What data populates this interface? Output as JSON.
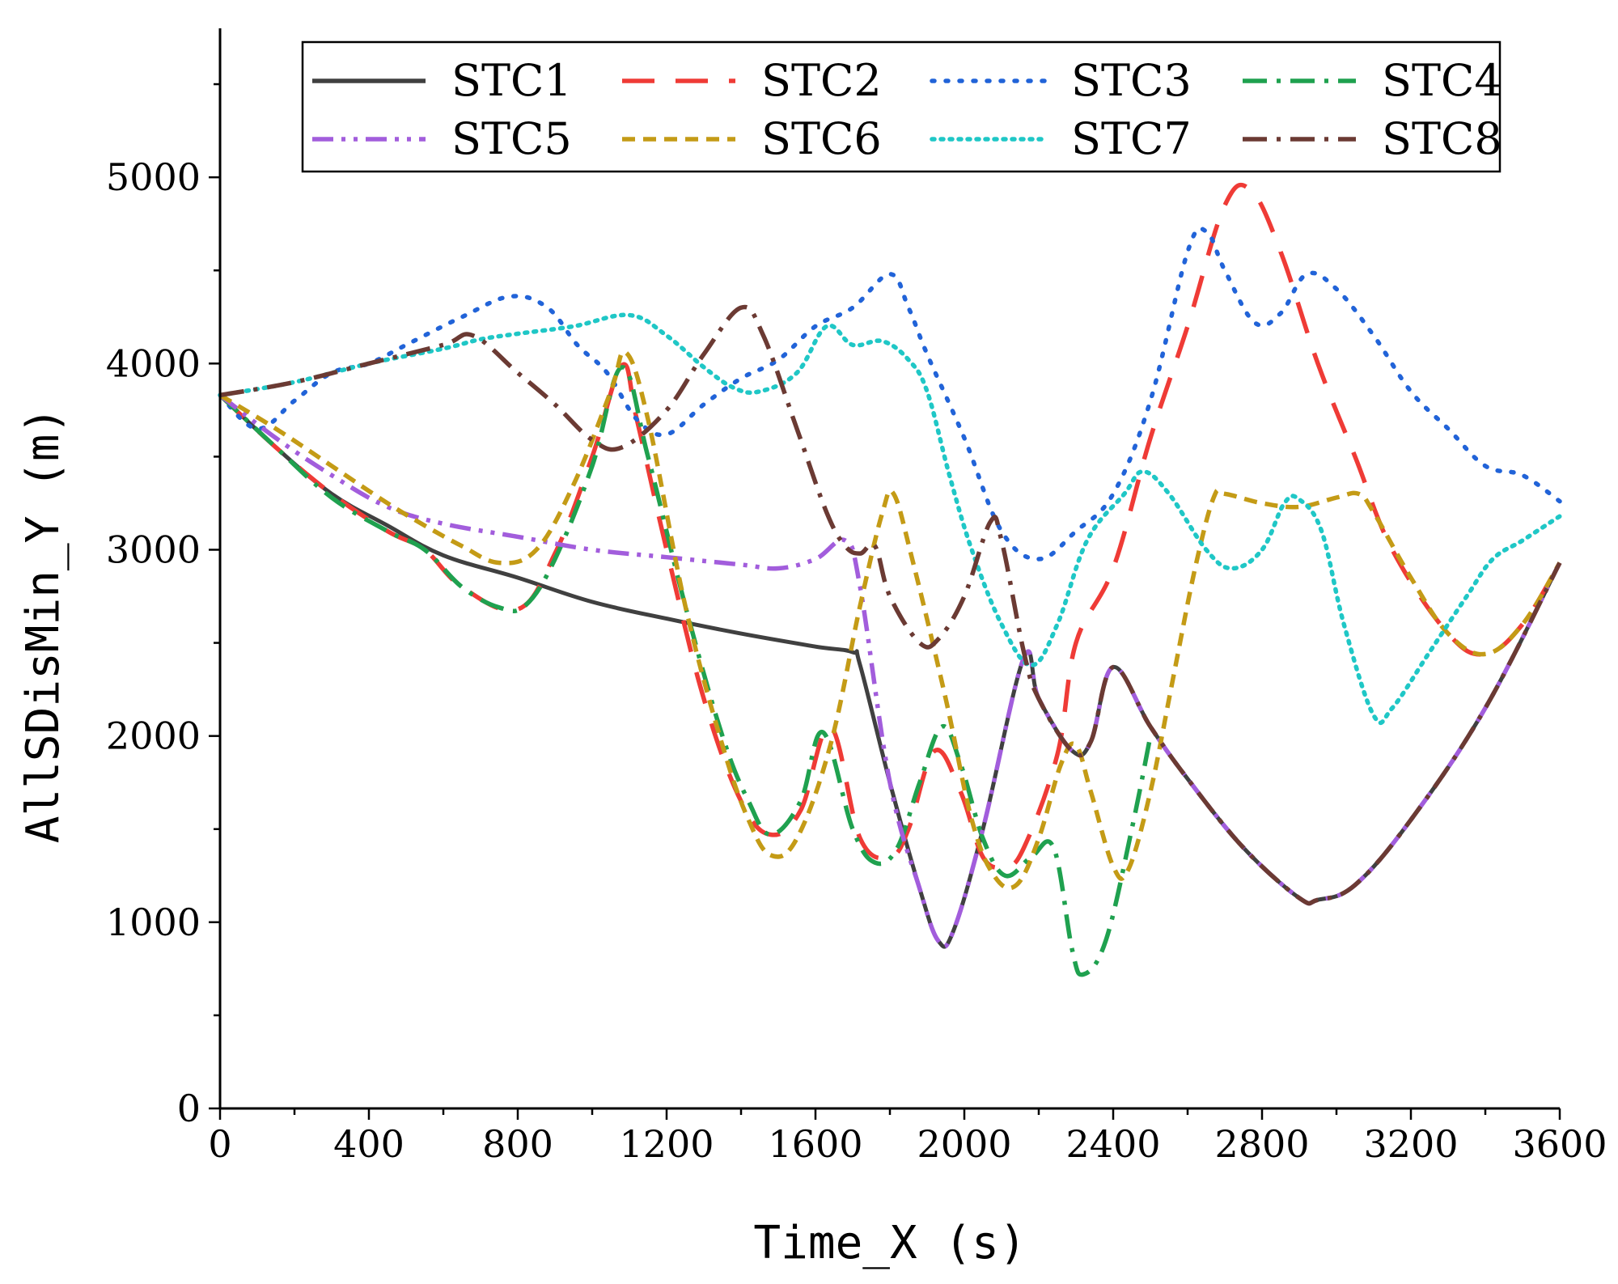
{
  "chart_data": {
    "type": "line",
    "title": "",
    "xlabel": "Time_X (s)",
    "ylabel": "AllSDisMin_Y (m)",
    "xlim": [
      0,
      3600
    ],
    "ylim": [
      0,
      5800
    ],
    "x_ticks": [
      0,
      400,
      800,
      1200,
      1600,
      2000,
      2400,
      2800,
      3200,
      3600
    ],
    "y_ticks": [
      0,
      1000,
      2000,
      3000,
      4000,
      5000
    ],
    "grid": false,
    "legend_position": "top",
    "series": [
      {
        "name": "STC1",
        "color": "#404040",
        "dash": "solid",
        "points": [
          [
            0,
            3830
          ],
          [
            150,
            3550
          ],
          [
            300,
            3300
          ],
          [
            450,
            3130
          ],
          [
            600,
            2970
          ],
          [
            800,
            2850
          ],
          [
            1000,
            2720
          ],
          [
            1200,
            2630
          ],
          [
            1400,
            2550
          ],
          [
            1600,
            2480
          ],
          [
            1700,
            2450
          ],
          [
            1720,
            2380
          ],
          [
            1800,
            1750
          ],
          [
            1880,
            1180
          ],
          [
            1930,
            900
          ],
          [
            1970,
            950
          ],
          [
            2050,
            1500
          ],
          [
            2160,
            2420
          ],
          [
            2200,
            2200
          ],
          [
            2290,
            1920
          ],
          [
            2340,
            1970
          ],
          [
            2400,
            2370
          ],
          [
            2500,
            2050
          ],
          [
            2600,
            1770
          ],
          [
            2750,
            1400
          ],
          [
            2900,
            1130
          ],
          [
            2950,
            1120
          ],
          [
            3050,
            1200
          ],
          [
            3200,
            1550
          ],
          [
            3400,
            2150
          ],
          [
            3600,
            2930
          ]
        ]
      },
      {
        "name": "STC2",
        "color": "#ef3b36",
        "dash": "long-dash",
        "points": [
          [
            0,
            3830
          ],
          [
            150,
            3550
          ],
          [
            300,
            3300
          ],
          [
            450,
            3100
          ],
          [
            550,
            3000
          ],
          [
            650,
            2800
          ],
          [
            800,
            2680
          ],
          [
            900,
            2980
          ],
          [
            1000,
            3500
          ],
          [
            1080,
            3990
          ],
          [
            1120,
            3700
          ],
          [
            1200,
            3000
          ],
          [
            1300,
            2200
          ],
          [
            1400,
            1650
          ],
          [
            1480,
            1470
          ],
          [
            1560,
            1600
          ],
          [
            1640,
            2050
          ],
          [
            1720,
            1450
          ],
          [
            1800,
            1350
          ],
          [
            1850,
            1500
          ],
          [
            1920,
            1920
          ],
          [
            1990,
            1700
          ],
          [
            2050,
            1350
          ],
          [
            2110,
            1300
          ],
          [
            2160,
            1400
          ],
          [
            2250,
            1900
          ],
          [
            2300,
            2500
          ],
          [
            2400,
            2900
          ],
          [
            2500,
            3600
          ],
          [
            2600,
            4200
          ],
          [
            2700,
            4850
          ],
          [
            2770,
            4930
          ],
          [
            2850,
            4600
          ],
          [
            2950,
            4000
          ],
          [
            3050,
            3500
          ],
          [
            3150,
            3000
          ],
          [
            3300,
            2550
          ],
          [
            3400,
            2440
          ],
          [
            3500,
            2600
          ],
          [
            3600,
            2930
          ]
        ]
      },
      {
        "name": "STC3",
        "color": "#2163d8",
        "dash": "dotted",
        "points": [
          [
            0,
            3830
          ],
          [
            100,
            3650
          ],
          [
            200,
            3800
          ],
          [
            300,
            3950
          ],
          [
            400,
            4000
          ],
          [
            500,
            4100
          ],
          [
            650,
            4250
          ],
          [
            780,
            4360
          ],
          [
            880,
            4300
          ],
          [
            960,
            4100
          ],
          [
            1040,
            3950
          ],
          [
            1120,
            3700
          ],
          [
            1200,
            3620
          ],
          [
            1300,
            3780
          ],
          [
            1400,
            3920
          ],
          [
            1500,
            4020
          ],
          [
            1600,
            4200
          ],
          [
            1700,
            4300
          ],
          [
            1800,
            4480
          ],
          [
            1850,
            4300
          ],
          [
            1900,
            4050
          ],
          [
            2000,
            3600
          ],
          [
            2100,
            3100
          ],
          [
            2200,
            2950
          ],
          [
            2300,
            3100
          ],
          [
            2400,
            3300
          ],
          [
            2500,
            3800
          ],
          [
            2600,
            4600
          ],
          [
            2650,
            4710
          ],
          [
            2700,
            4500
          ],
          [
            2780,
            4220
          ],
          [
            2850,
            4270
          ],
          [
            2920,
            4480
          ],
          [
            3000,
            4400
          ],
          [
            3100,
            4150
          ],
          [
            3200,
            3850
          ],
          [
            3300,
            3650
          ],
          [
            3400,
            3450
          ],
          [
            3500,
            3400
          ],
          [
            3600,
            3260
          ]
        ]
      },
      {
        "name": "STC4",
        "color": "#1fa14f",
        "dash": "dash-dot",
        "points": [
          [
            0,
            3830
          ],
          [
            150,
            3550
          ],
          [
            300,
            3280
          ],
          [
            450,
            3100
          ],
          [
            550,
            3000
          ],
          [
            650,
            2800
          ],
          [
            750,
            2690
          ],
          [
            820,
            2700
          ],
          [
            900,
            2950
          ],
          [
            1000,
            3450
          ],
          [
            1080,
            3980
          ],
          [
            1150,
            3500
          ],
          [
            1250,
            2700
          ],
          [
            1350,
            2000
          ],
          [
            1420,
            1650
          ],
          [
            1480,
            1470
          ],
          [
            1560,
            1650
          ],
          [
            1620,
            2020
          ],
          [
            1700,
            1500
          ],
          [
            1760,
            1320
          ],
          [
            1820,
            1400
          ],
          [
            1880,
            1750
          ],
          [
            1940,
            2050
          ],
          [
            1990,
            1850
          ],
          [
            2050,
            1450
          ],
          [
            2110,
            1250
          ],
          [
            2180,
            1350
          ],
          [
            2240,
            1400
          ],
          [
            2290,
            850
          ],
          [
            2320,
            720
          ],
          [
            2380,
            900
          ],
          [
            2450,
            1500
          ],
          [
            2500,
            2000
          ]
        ]
      },
      {
        "name": "STC5",
        "color": "#a25ddc",
        "dash": "dash-dot-dot",
        "points": [
          [
            0,
            3830
          ],
          [
            150,
            3600
          ],
          [
            300,
            3400
          ],
          [
            450,
            3230
          ],
          [
            600,
            3140
          ],
          [
            800,
            3070
          ],
          [
            1000,
            3000
          ],
          [
            1200,
            2960
          ],
          [
            1400,
            2920
          ],
          [
            1500,
            2900
          ],
          [
            1600,
            2950
          ],
          [
            1680,
            3050
          ],
          [
            1720,
            2800
          ],
          [
            1800,
            1750
          ],
          [
            1880,
            1180
          ],
          [
            1930,
            900
          ],
          [
            1970,
            950
          ],
          [
            2050,
            1500
          ],
          [
            2160,
            2420
          ],
          [
            2200,
            2200
          ],
          [
            2290,
            1920
          ],
          [
            2340,
            1970
          ],
          [
            2400,
            2370
          ],
          [
            2500,
            2050
          ],
          [
            2600,
            1770
          ],
          [
            2750,
            1400
          ],
          [
            2900,
            1130
          ],
          [
            2950,
            1120
          ],
          [
            3050,
            1200
          ],
          [
            3200,
            1550
          ],
          [
            3400,
            2150
          ],
          [
            3600,
            2930
          ]
        ]
      },
      {
        "name": "STC6",
        "color": "#c49b16",
        "dash": "short-dash",
        "points": [
          [
            0,
            3830
          ],
          [
            150,
            3650
          ],
          [
            300,
            3450
          ],
          [
            450,
            3250
          ],
          [
            550,
            3130
          ],
          [
            650,
            3020
          ],
          [
            750,
            2930
          ],
          [
            850,
            3000
          ],
          [
            950,
            3350
          ],
          [
            1050,
            3850
          ],
          [
            1090,
            4060
          ],
          [
            1150,
            3700
          ],
          [
            1250,
            2700
          ],
          [
            1350,
            1950
          ],
          [
            1420,
            1550
          ],
          [
            1480,
            1360
          ],
          [
            1550,
            1450
          ],
          [
            1640,
            1950
          ],
          [
            1720,
            2700
          ],
          [
            1780,
            3200
          ],
          [
            1810,
            3300
          ],
          [
            1860,
            2950
          ],
          [
            1950,
            2200
          ],
          [
            2020,
            1550
          ],
          [
            2080,
            1250
          ],
          [
            2140,
            1200
          ],
          [
            2200,
            1450
          ],
          [
            2260,
            1850
          ],
          [
            2300,
            1950
          ],
          [
            2340,
            1700
          ],
          [
            2400,
            1300
          ],
          [
            2440,
            1280
          ],
          [
            2500,
            1700
          ],
          [
            2560,
            2300
          ],
          [
            2620,
            2900
          ],
          [
            2670,
            3280
          ],
          [
            2700,
            3300
          ],
          [
            2800,
            3250
          ],
          [
            2900,
            3230
          ],
          [
            3000,
            3280
          ],
          [
            3060,
            3300
          ],
          [
            3100,
            3200
          ],
          [
            3200,
            2850
          ],
          [
            3300,
            2550
          ],
          [
            3400,
            2440
          ],
          [
            3500,
            2600
          ],
          [
            3600,
            2930
          ]
        ]
      },
      {
        "name": "STC7",
        "color": "#1fc7c6",
        "dash": "dense-dotted",
        "points": [
          [
            0,
            3830
          ],
          [
            200,
            3900
          ],
          [
            400,
            4000
          ],
          [
            600,
            4080
          ],
          [
            700,
            4130
          ],
          [
            800,
            4160
          ],
          [
            950,
            4200
          ],
          [
            1100,
            4260
          ],
          [
            1200,
            4150
          ],
          [
            1300,
            3980
          ],
          [
            1380,
            3870
          ],
          [
            1450,
            3850
          ],
          [
            1550,
            3950
          ],
          [
            1630,
            4200
          ],
          [
            1700,
            4100
          ],
          [
            1780,
            4120
          ],
          [
            1850,
            4020
          ],
          [
            1900,
            3850
          ],
          [
            1960,
            3400
          ],
          [
            2020,
            3000
          ],
          [
            2100,
            2600
          ],
          [
            2180,
            2380
          ],
          [
            2250,
            2600
          ],
          [
            2330,
            3050
          ],
          [
            2430,
            3300
          ],
          [
            2480,
            3420
          ],
          [
            2550,
            3300
          ],
          [
            2650,
            3000
          ],
          [
            2720,
            2900
          ],
          [
            2800,
            3000
          ],
          [
            2860,
            3250
          ],
          [
            2900,
            3270
          ],
          [
            2960,
            3100
          ],
          [
            3020,
            2600
          ],
          [
            3100,
            2110
          ],
          [
            3150,
            2150
          ],
          [
            3250,
            2450
          ],
          [
            3350,
            2750
          ],
          [
            3420,
            2950
          ],
          [
            3500,
            3050
          ],
          [
            3600,
            3180
          ]
        ]
      },
      {
        "name": "STC8",
        "color": "#6b3a33",
        "dash": "dash-dot",
        "points": [
          [
            0,
            3830
          ],
          [
            200,
            3900
          ],
          [
            400,
            4000
          ],
          [
            600,
            4100
          ],
          [
            680,
            4150
          ],
          [
            800,
            3950
          ],
          [
            900,
            3780
          ],
          [
            1000,
            3590
          ],
          [
            1080,
            3550
          ],
          [
            1200,
            3750
          ],
          [
            1300,
            4050
          ],
          [
            1400,
            4300
          ],
          [
            1460,
            4150
          ],
          [
            1550,
            3650
          ],
          [
            1630,
            3200
          ],
          [
            1680,
            3020
          ],
          [
            1720,
            2980
          ],
          [
            1760,
            3020
          ],
          [
            1800,
            2750
          ],
          [
            1880,
            2500
          ],
          [
            1930,
            2520
          ],
          [
            2000,
            2750
          ],
          [
            2070,
            3150
          ],
          [
            2100,
            3050
          ],
          [
            2160,
            2450
          ],
          [
            2200,
            2200
          ],
          [
            2290,
            1920
          ],
          [
            2340,
            1970
          ],
          [
            2400,
            2370
          ],
          [
            2500,
            2050
          ],
          [
            2600,
            1770
          ],
          [
            2750,
            1400
          ],
          [
            2900,
            1130
          ],
          [
            2950,
            1120
          ],
          [
            3050,
            1200
          ],
          [
            3200,
            1550
          ],
          [
            3400,
            2150
          ],
          [
            3600,
            2930
          ]
        ]
      }
    ]
  }
}
